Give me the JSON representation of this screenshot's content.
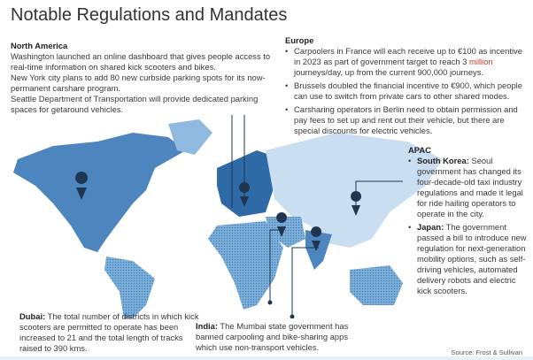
{
  "title": "Notable Regulations and Mandates",
  "north_america": {
    "heading": "North America",
    "paragraphs": [
      "Washington launched an online dashboard that gives people access to real-time information on shared kick scooters and bikes.",
      "New York city plans to add 80 new curbside parking spots for its now-permanent  carshare program.",
      "Seattle Department of Transportation will provide dedicated parking spaces for getaround vehicles."
    ]
  },
  "europe": {
    "heading": "Europe",
    "items": [
      {
        "pre": "Carpoolers in France will each receive up to €100 as incentive in 2023 as part of government target to reach 3 ",
        "highlight": "million",
        "post": " journeys/day, up from the current 900,000 journeys."
      },
      {
        "text": "Brussels doubled the financial incentive to €900, which people can use to switch from  private cars to other  shared modes."
      },
      {
        "text": "Carsharing operators in Berlin need to obtain permission and pay fees to set up and rent out their vehicle, but there are special discounts for electric vehicles."
      }
    ]
  },
  "apac": {
    "heading": "APAC",
    "items": [
      {
        "label": "South Korea:",
        "text": " Seoul government  has changed its four-decade-old taxi industry  regulations and made it legal for ride hailing operators to operate in the city."
      },
      {
        "label": "Japan:",
        "text": "  The government passed a bill to introduce new regulation for next-generation mobility options,  such as self-driving vehicles, automated delivery robots and electric kick scooters."
      }
    ]
  },
  "dubai": {
    "label": "Dubai:",
    "text": " The total number of districts in which kick scooters are permitted to operate has been increased to 21 and the total length of tracks raised to 390 kms."
  },
  "india": {
    "label": "India:",
    "text": " The Mumbai state government has banned carpooling and bike-sharing apps which use non-transport vehicles."
  },
  "source": "Source: Frost & Sullivan",
  "colors": {
    "land": "#5b93c7",
    "land_dark": "#2e6aa6",
    "land_light": "#c9def0",
    "pin": "#1f3550"
  },
  "icons": [
    "map-pin-icon"
  ]
}
